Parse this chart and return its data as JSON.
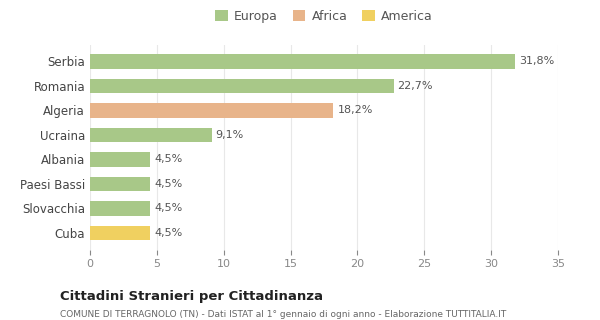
{
  "categories": [
    "Cuba",
    "Slovacchia",
    "Paesi Bassi",
    "Albania",
    "Ucraina",
    "Algeria",
    "Romania",
    "Serbia"
  ],
  "values": [
    4.5,
    4.5,
    4.5,
    4.5,
    9.1,
    18.2,
    22.7,
    31.8
  ],
  "labels": [
    "4,5%",
    "4,5%",
    "4,5%",
    "4,5%",
    "9,1%",
    "18,2%",
    "22,7%",
    "31,8%"
  ],
  "bar_colors": [
    "#f0d060",
    "#a8c888",
    "#a8c888",
    "#a8c888",
    "#a8c888",
    "#e8b48a",
    "#a8c888",
    "#a8c888"
  ],
  "legend": [
    {
      "label": "Europa",
      "color": "#a8c888"
    },
    {
      "label": "Africa",
      "color": "#e8b48a"
    },
    {
      "label": "America",
      "color": "#f0d060"
    }
  ],
  "xlim": [
    0,
    35
  ],
  "xticks": [
    0,
    5,
    10,
    15,
    20,
    25,
    30,
    35
  ],
  "title": "Cittadini Stranieri per Cittadinanza",
  "subtitle": "COMUNE DI TERRAGNOLO (TN) - Dati ISTAT al 1° gennaio di ogni anno - Elaborazione TUTTITALIA.IT",
  "background_color": "#ffffff",
  "grid_color": "#e8e8e8"
}
